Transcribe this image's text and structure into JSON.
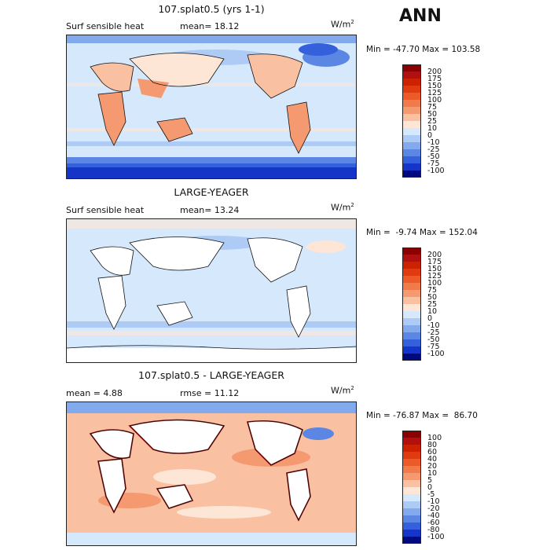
{
  "season": "ANN",
  "panels": [
    {
      "title": "107.splat0.5 (yrs 1-1)",
      "left_label": "Surf sensible heat",
      "center_label": "mean=  18.12",
      "units_base": "W/m",
      "units_exp": "2",
      "minmax": "Min = -47.70 Max = 103.58",
      "colorbar": {
        "labels": [
          "200",
          "175",
          "150",
          "125",
          "100",
          "75",
          "50",
          "25",
          "10",
          "0",
          "-10",
          "-25",
          "-50",
          "-75",
          "-100"
        ],
        "colors": [
          "#8b0000",
          "#b01010",
          "#cc2200",
          "#e03a10",
          "#ec5a2a",
          "#f07a4a",
          "#f59a70",
          "#f9c0a2",
          "#fde6d6",
          "#d6e8fb",
          "#aecbf5",
          "#84aaee",
          "#5b86e4",
          "#3560dc",
          "#1535c8",
          "#000a80"
        ]
      }
    },
    {
      "title": "LARGE-YEAGER",
      "left_label": "Surf sensible heat",
      "center_label": "mean=  13.24",
      "units_base": "W/m",
      "units_exp": "2",
      "minmax": "Min =  -9.74 Max = 152.04",
      "colorbar": {
        "labels": [
          "200",
          "175",
          "150",
          "125",
          "100",
          "75",
          "50",
          "25",
          "10",
          "0",
          "-10",
          "-25",
          "-50",
          "-75",
          "-100"
        ],
        "colors": [
          "#8b0000",
          "#b01010",
          "#cc2200",
          "#e03a10",
          "#ec5a2a",
          "#f07a4a",
          "#f59a70",
          "#f9c0a2",
          "#fde6d6",
          "#d6e8fb",
          "#aecbf5",
          "#84aaee",
          "#5b86e4",
          "#3560dc",
          "#1535c8",
          "#000a80"
        ]
      }
    },
    {
      "title": "107.splat0.5 - LARGE-YEAGER",
      "left_label": "mean =   4.88",
      "center_label": "rmse =  11.12",
      "units_base": "W/m",
      "units_exp": "2",
      "minmax": "Min = -76.87 Max =  86.70",
      "colorbar": {
        "labels": [
          "100",
          "80",
          "60",
          "40",
          "20",
          "10",
          "5",
          "0",
          "-5",
          "-10",
          "-20",
          "-40",
          "-60",
          "-80",
          "-100"
        ],
        "colors": [
          "#8b0000",
          "#b01010",
          "#cc2200",
          "#e03a10",
          "#ec5a2a",
          "#f07a4a",
          "#f59a70",
          "#f9c0a2",
          "#fde6d6",
          "#d6e8fb",
          "#aecbf5",
          "#84aaee",
          "#5b86e4",
          "#3560dc",
          "#1535c8",
          "#000a80"
        ]
      }
    }
  ]
}
